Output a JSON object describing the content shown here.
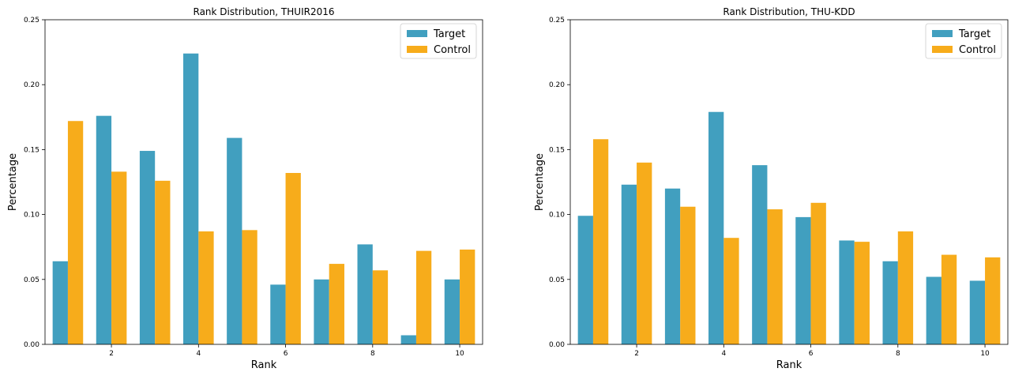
{
  "chart_data": [
    {
      "type": "bar",
      "title": "Rank Distribution, THUIR2016",
      "xlabel": "Rank",
      "ylabel": "Percentage",
      "ylim": [
        0,
        0.25
      ],
      "yticks": [
        "0.00",
        "0.05",
        "0.10",
        "0.15",
        "0.20",
        "0.25"
      ],
      "xticks": [
        "2",
        "4",
        "6",
        "8",
        "10"
      ],
      "categories": [
        1,
        2,
        3,
        4,
        5,
        6,
        7,
        8,
        9,
        10
      ],
      "legend_position": "top-right",
      "series": [
        {
          "name": "Target",
          "color": "#419fbf",
          "values": [
            0.064,
            0.176,
            0.149,
            0.224,
            0.159,
            0.046,
            0.05,
            0.077,
            0.007,
            0.05
          ]
        },
        {
          "name": "Control",
          "color": "#f7ac1b",
          "values": [
            0.172,
            0.133,
            0.126,
            0.087,
            0.088,
            0.132,
            0.062,
            0.057,
            0.072,
            0.073
          ]
        }
      ]
    },
    {
      "type": "bar",
      "title": "Rank Distribution, THU-KDD",
      "xlabel": "Rank",
      "ylabel": "Percentage",
      "ylim": [
        0,
        0.25
      ],
      "yticks": [
        "0.00",
        "0.05",
        "0.10",
        "0.15",
        "0.20",
        "0.25"
      ],
      "xticks": [
        "2",
        "4",
        "6",
        "8",
        "10"
      ],
      "categories": [
        1,
        2,
        3,
        4,
        5,
        6,
        7,
        8,
        9,
        10
      ],
      "legend_position": "top-right",
      "series": [
        {
          "name": "Target",
          "color": "#419fbf",
          "values": [
            0.099,
            0.123,
            0.12,
            0.179,
            0.138,
            0.098,
            0.08,
            0.064,
            0.052,
            0.049
          ]
        },
        {
          "name": "Control",
          "color": "#f7ac1b",
          "values": [
            0.158,
            0.14,
            0.106,
            0.082,
            0.104,
            0.109,
            0.079,
            0.087,
            0.069,
            0.067
          ]
        }
      ]
    }
  ]
}
